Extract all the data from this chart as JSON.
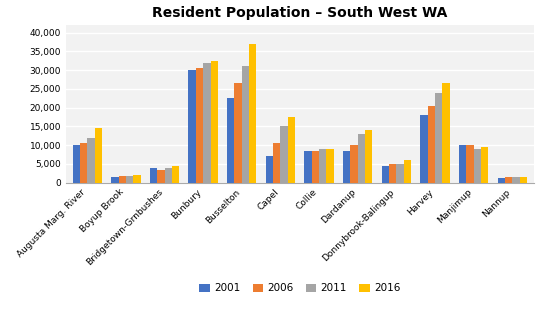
{
  "title": "Resident Population – South West WA",
  "categories": [
    "Augusta Marg. River",
    "Boyup Brook",
    "Bridgetown-Grnbushes",
    "Bunbury",
    "Busselton",
    "Capel",
    "Collie",
    "Dardanup",
    "Donnybrook-Balingup",
    "Harvey",
    "Manjimup",
    "Nannup"
  ],
  "years": [
    "2001",
    "2006",
    "2011",
    "2016"
  ],
  "colors": [
    "#4472C4",
    "#ED7D31",
    "#A5A5A5",
    "#FFC000"
  ],
  "data": {
    "2001": [
      10000,
      1500,
      3800,
      30000,
      22500,
      7000,
      8500,
      8500,
      4500,
      18000,
      10000,
      1200
    ],
    "2006": [
      10500,
      1700,
      3500,
      30500,
      26500,
      10500,
      8500,
      10000,
      5000,
      20500,
      10000,
      1500
    ],
    "2011": [
      12000,
      1700,
      4000,
      32000,
      31000,
      15000,
      9000,
      13000,
      5000,
      24000,
      9000,
      1500
    ],
    "2016": [
      14500,
      2000,
      4500,
      32500,
      37000,
      17500,
      9000,
      14000,
      6000,
      26500,
      9500,
      1500
    ]
  },
  "ylim": [
    0,
    42000
  ],
  "yticks": [
    0,
    5000,
    10000,
    15000,
    20000,
    25000,
    30000,
    35000,
    40000
  ],
  "ytick_labels": [
    "0",
    "5,000",
    "10,000",
    "15,000",
    "20,000",
    "25,000",
    "30,000",
    "35,000",
    "40,000"
  ],
  "plot_bg_color": "#F2F2F2",
  "fig_bg_color": "#FFFFFF",
  "grid_color": "#FFFFFF",
  "bar_width": 0.19,
  "title_fontsize": 10,
  "tick_fontsize": 6.5,
  "legend_fontsize": 7.5
}
